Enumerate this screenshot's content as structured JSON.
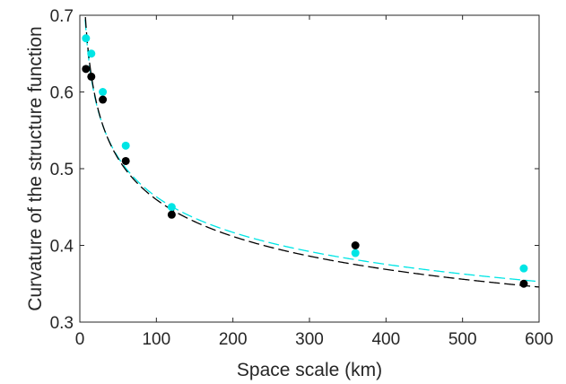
{
  "chart_data": {
    "type": "scatter",
    "title": "",
    "xlabel": "Space scale (km)",
    "ylabel": "Curvature of the structure function",
    "xlim": [
      0,
      600
    ],
    "ylim": [
      0.3,
      0.7
    ],
    "x_ticks": [
      0,
      100,
      200,
      300,
      400,
      500,
      600
    ],
    "y_ticks": [
      0.3,
      0.4,
      0.5,
      0.6,
      0.7
    ],
    "x_tick_labels": [
      "0",
      "100",
      "200",
      "300",
      "400",
      "500",
      "600"
    ],
    "y_tick_labels": [
      "0.3",
      "0.4",
      "0.5",
      "0.6",
      "0.7"
    ],
    "grid": false,
    "legend": null,
    "series": [
      {
        "color": "#00e5e5",
        "marker": "filled-circle",
        "x": [
          8,
          15,
          30,
          60,
          120,
          360,
          580
        ],
        "y": [
          0.67,
          0.65,
          0.6,
          0.53,
          0.45,
          0.39,
          0.37
        ],
        "fit": {
          "style": "dashed",
          "power_law": {
            "a": 0.933,
            "b": -0.152
          }
        }
      },
      {
        "color": "#000000",
        "marker": "filled-circle",
        "x": [
          8,
          15,
          30,
          60,
          120,
          360,
          580
        ],
        "y": [
          0.63,
          0.62,
          0.59,
          0.51,
          0.44,
          0.4,
          0.35
        ],
        "fit": {
          "style": "dashed",
          "power_law": {
            "a": 0.956,
            "b": -0.159
          }
        }
      }
    ]
  }
}
